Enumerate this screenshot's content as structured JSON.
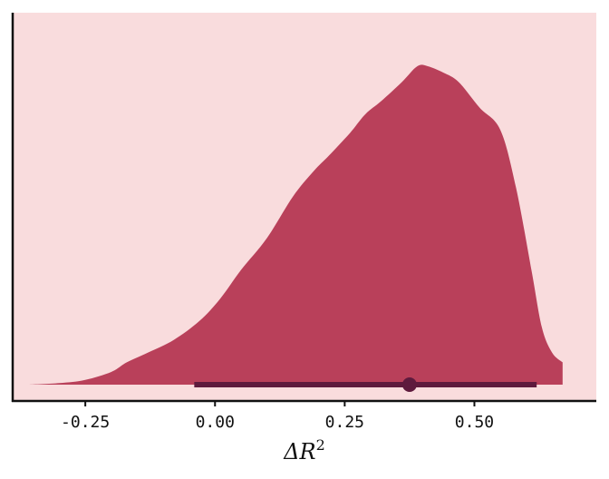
{
  "chart_data": {
    "type": "area",
    "subtype": "density (half-eye) with point interval",
    "xlabel": "ΔR²",
    "xlabel_parts": {
      "main": "ΔR",
      "sup": "2"
    },
    "ylabel": "",
    "xlim": [
      -0.39,
      0.735
    ],
    "ylim": [
      0,
      1.05
    ],
    "x_ticks": [
      -0.25,
      0.0,
      0.25,
      0.5
    ],
    "x_tick_labels": [
      "-0.25",
      "0.00",
      "0.25",
      "0.50"
    ],
    "grid": false,
    "density": {
      "x": [
        -0.36,
        -0.3,
        -0.25,
        -0.2,
        -0.17,
        -0.13,
        -0.08,
        -0.03,
        0.01,
        0.05,
        0.1,
        0.15,
        0.19,
        0.22,
        0.26,
        0.29,
        0.32,
        0.36,
        0.39,
        0.41,
        0.44,
        0.47,
        0.51,
        0.55,
        0.58,
        0.61,
        0.63,
        0.65,
        0.67
      ],
      "y": [
        0.0,
        0.005,
        0.015,
        0.04,
        0.07,
        0.1,
        0.14,
        0.2,
        0.27,
        0.36,
        0.46,
        0.59,
        0.67,
        0.72,
        0.79,
        0.85,
        0.89,
        0.95,
        1.0,
        1.0,
        0.98,
        0.95,
        0.87,
        0.8,
        0.62,
        0.36,
        0.18,
        0.1,
        0.07
      ]
    },
    "point_estimate": 0.375,
    "interval": [
      -0.04,
      0.62
    ],
    "colors": {
      "panel_background": "#f9dcdd",
      "density_fill": "#b9405a",
      "interval": "#5e1a3d",
      "axis": "#111111"
    }
  }
}
